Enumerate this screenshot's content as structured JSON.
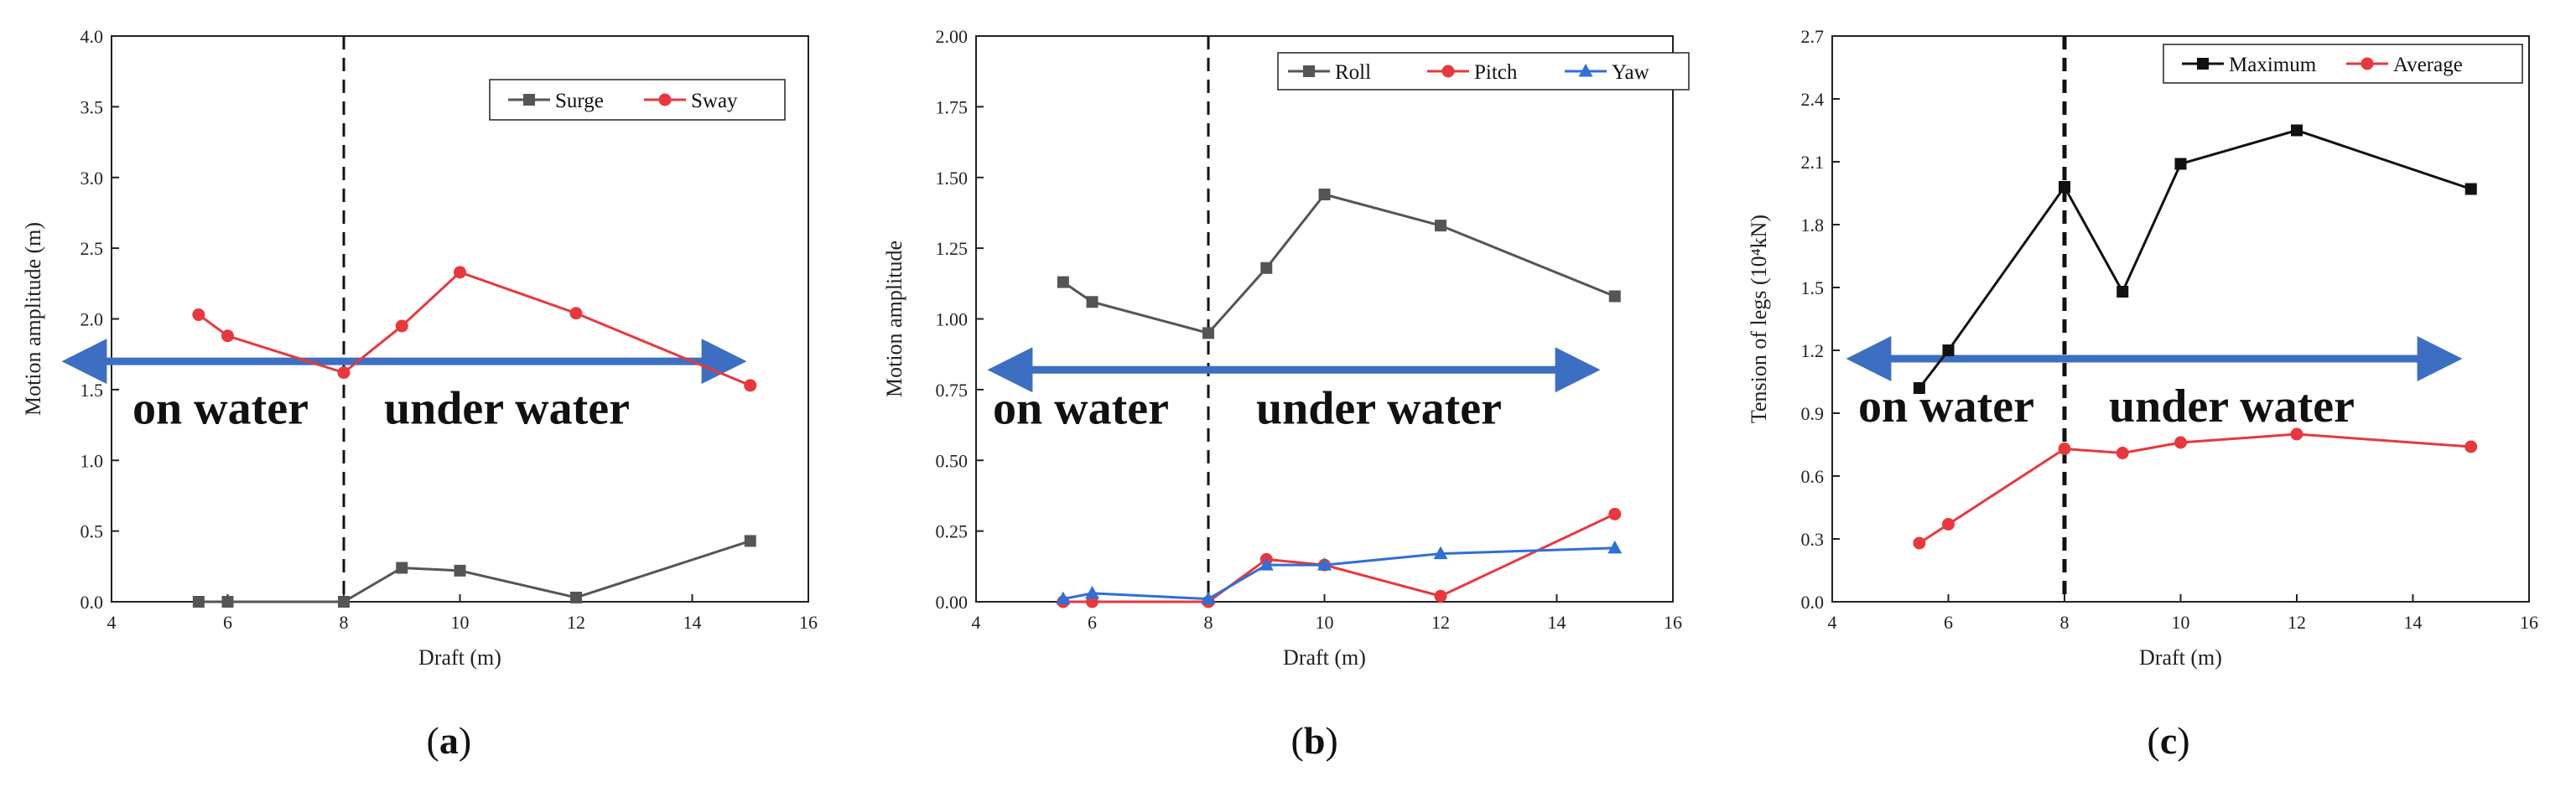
{
  "chart_data": [
    {
      "type": "line",
      "panel_label": "a",
      "title": "",
      "xlabel": "Draft (m)",
      "ylabel": "Motion amplitude (m)",
      "xlim": [
        4,
        16
      ],
      "ylim": [
        0,
        4.0
      ],
      "xticks": [
        "4",
        "6",
        "8",
        "10",
        "12",
        "14",
        "16"
      ],
      "yticks": [
        "0.0",
        "0.5",
        "1.0",
        "1.5",
        "2.0",
        "2.5",
        "3.0",
        "3.5",
        "4.0"
      ],
      "xtick_values": [
        4,
        6,
        8,
        10,
        12,
        14,
        16
      ],
      "ytick_values": [
        0,
        0.5,
        1.0,
        1.5,
        2.0,
        2.5,
        3.0,
        3.5,
        4.0
      ],
      "legend_position": "top-right",
      "divider_x": 8,
      "arrow_y": 1.7,
      "region_text_y": 1.2,
      "regions": [
        "on water",
        "under water"
      ],
      "series": [
        {
          "name": "Surge",
          "marker": "square",
          "color": "#555555",
          "x": [
            5.5,
            6,
            8,
            9,
            10,
            12,
            15
          ],
          "y": [
            0.0,
            0.0,
            0.0,
            0.24,
            0.22,
            0.03,
            0.43
          ]
        },
        {
          "name": "Sway",
          "marker": "circle",
          "color": "#e8383d",
          "x": [
            5.5,
            6,
            8,
            9,
            10,
            12,
            15
          ],
          "y": [
            2.03,
            1.88,
            1.62,
            1.95,
            2.33,
            2.04,
            1.53
          ]
        }
      ]
    },
    {
      "type": "line",
      "panel_label": "b",
      "title": "",
      "xlabel": "Draft (m)",
      "ylabel": "Motion amplitude",
      "xlim": [
        4,
        16
      ],
      "ylim": [
        0,
        2.0
      ],
      "xticks": [
        "4",
        "6",
        "8",
        "10",
        "12",
        "14",
        "16"
      ],
      "yticks": [
        "0.00",
        "0.25",
        "0.50",
        "0.75",
        "1.00",
        "1.25",
        "1.50",
        "1.75",
        "2.00"
      ],
      "xtick_values": [
        4,
        6,
        8,
        10,
        12,
        14,
        16
      ],
      "ytick_values": [
        0,
        0.25,
        0.5,
        0.75,
        1.0,
        1.25,
        1.5,
        1.75,
        2.0
      ],
      "legend_position": "top-right",
      "divider_x": 8,
      "arrow_y": 0.82,
      "region_text_y": 0.6,
      "regions": [
        "on water",
        "under water"
      ],
      "series": [
        {
          "name": "Roll",
          "marker": "square",
          "color": "#555555",
          "x": [
            5.5,
            6,
            8,
            9,
            10,
            12,
            15
          ],
          "y": [
            1.13,
            1.06,
            0.95,
            1.18,
            1.44,
            1.33,
            1.08
          ]
        },
        {
          "name": "Pitch",
          "marker": "circle",
          "color": "#e8383d",
          "x": [
            5.5,
            6,
            8,
            9,
            10,
            12,
            15
          ],
          "y": [
            0.0,
            0.0,
            0.0,
            0.15,
            0.13,
            0.02,
            0.31
          ]
        },
        {
          "name": "Yaw",
          "marker": "triangle",
          "color": "#2f6fd6",
          "x": [
            5.5,
            6,
            8,
            9,
            10,
            12,
            15
          ],
          "y": [
            0.01,
            0.03,
            0.01,
            0.13,
            0.13,
            0.17,
            0.19
          ]
        }
      ]
    },
    {
      "type": "line",
      "panel_label": "c",
      "title": "",
      "xlabel": "Draft (m)",
      "ylabel": "Tension of legs (10⁴kN)",
      "xlim": [
        4,
        16
      ],
      "ylim": [
        0,
        2.7
      ],
      "xticks": [
        "4",
        "6",
        "8",
        "10",
        "12",
        "14",
        "16"
      ],
      "yticks": [
        "0.0",
        "0.3",
        "0.6",
        "0.9",
        "1.2",
        "1.5",
        "1.8",
        "2.1",
        "2.4",
        "2.7"
      ],
      "xtick_values": [
        4,
        6,
        8,
        10,
        12,
        14,
        16
      ],
      "ytick_values": [
        0,
        0.3,
        0.6,
        0.9,
        1.2,
        1.5,
        1.8,
        2.1,
        2.4,
        2.7
      ],
      "legend_position": "top-right",
      "divider_x": 8,
      "arrow_y": 1.16,
      "region_text_y": 0.82,
      "regions": [
        "on water",
        "under water"
      ],
      "series": [
        {
          "name": "Maximum",
          "marker": "square",
          "color": "#111111",
          "x": [
            5.5,
            6,
            8,
            9,
            10,
            12,
            15
          ],
          "y": [
            1.02,
            1.2,
            1.98,
            1.48,
            2.09,
            2.25,
            1.97
          ]
        },
        {
          "name": "Average",
          "marker": "circle",
          "color": "#e8383d",
          "x": [
            5.5,
            6,
            8,
            9,
            10,
            12,
            15
          ],
          "y": [
            0.28,
            0.37,
            0.73,
            0.71,
            0.76,
            0.8,
            0.74
          ]
        }
      ]
    }
  ]
}
